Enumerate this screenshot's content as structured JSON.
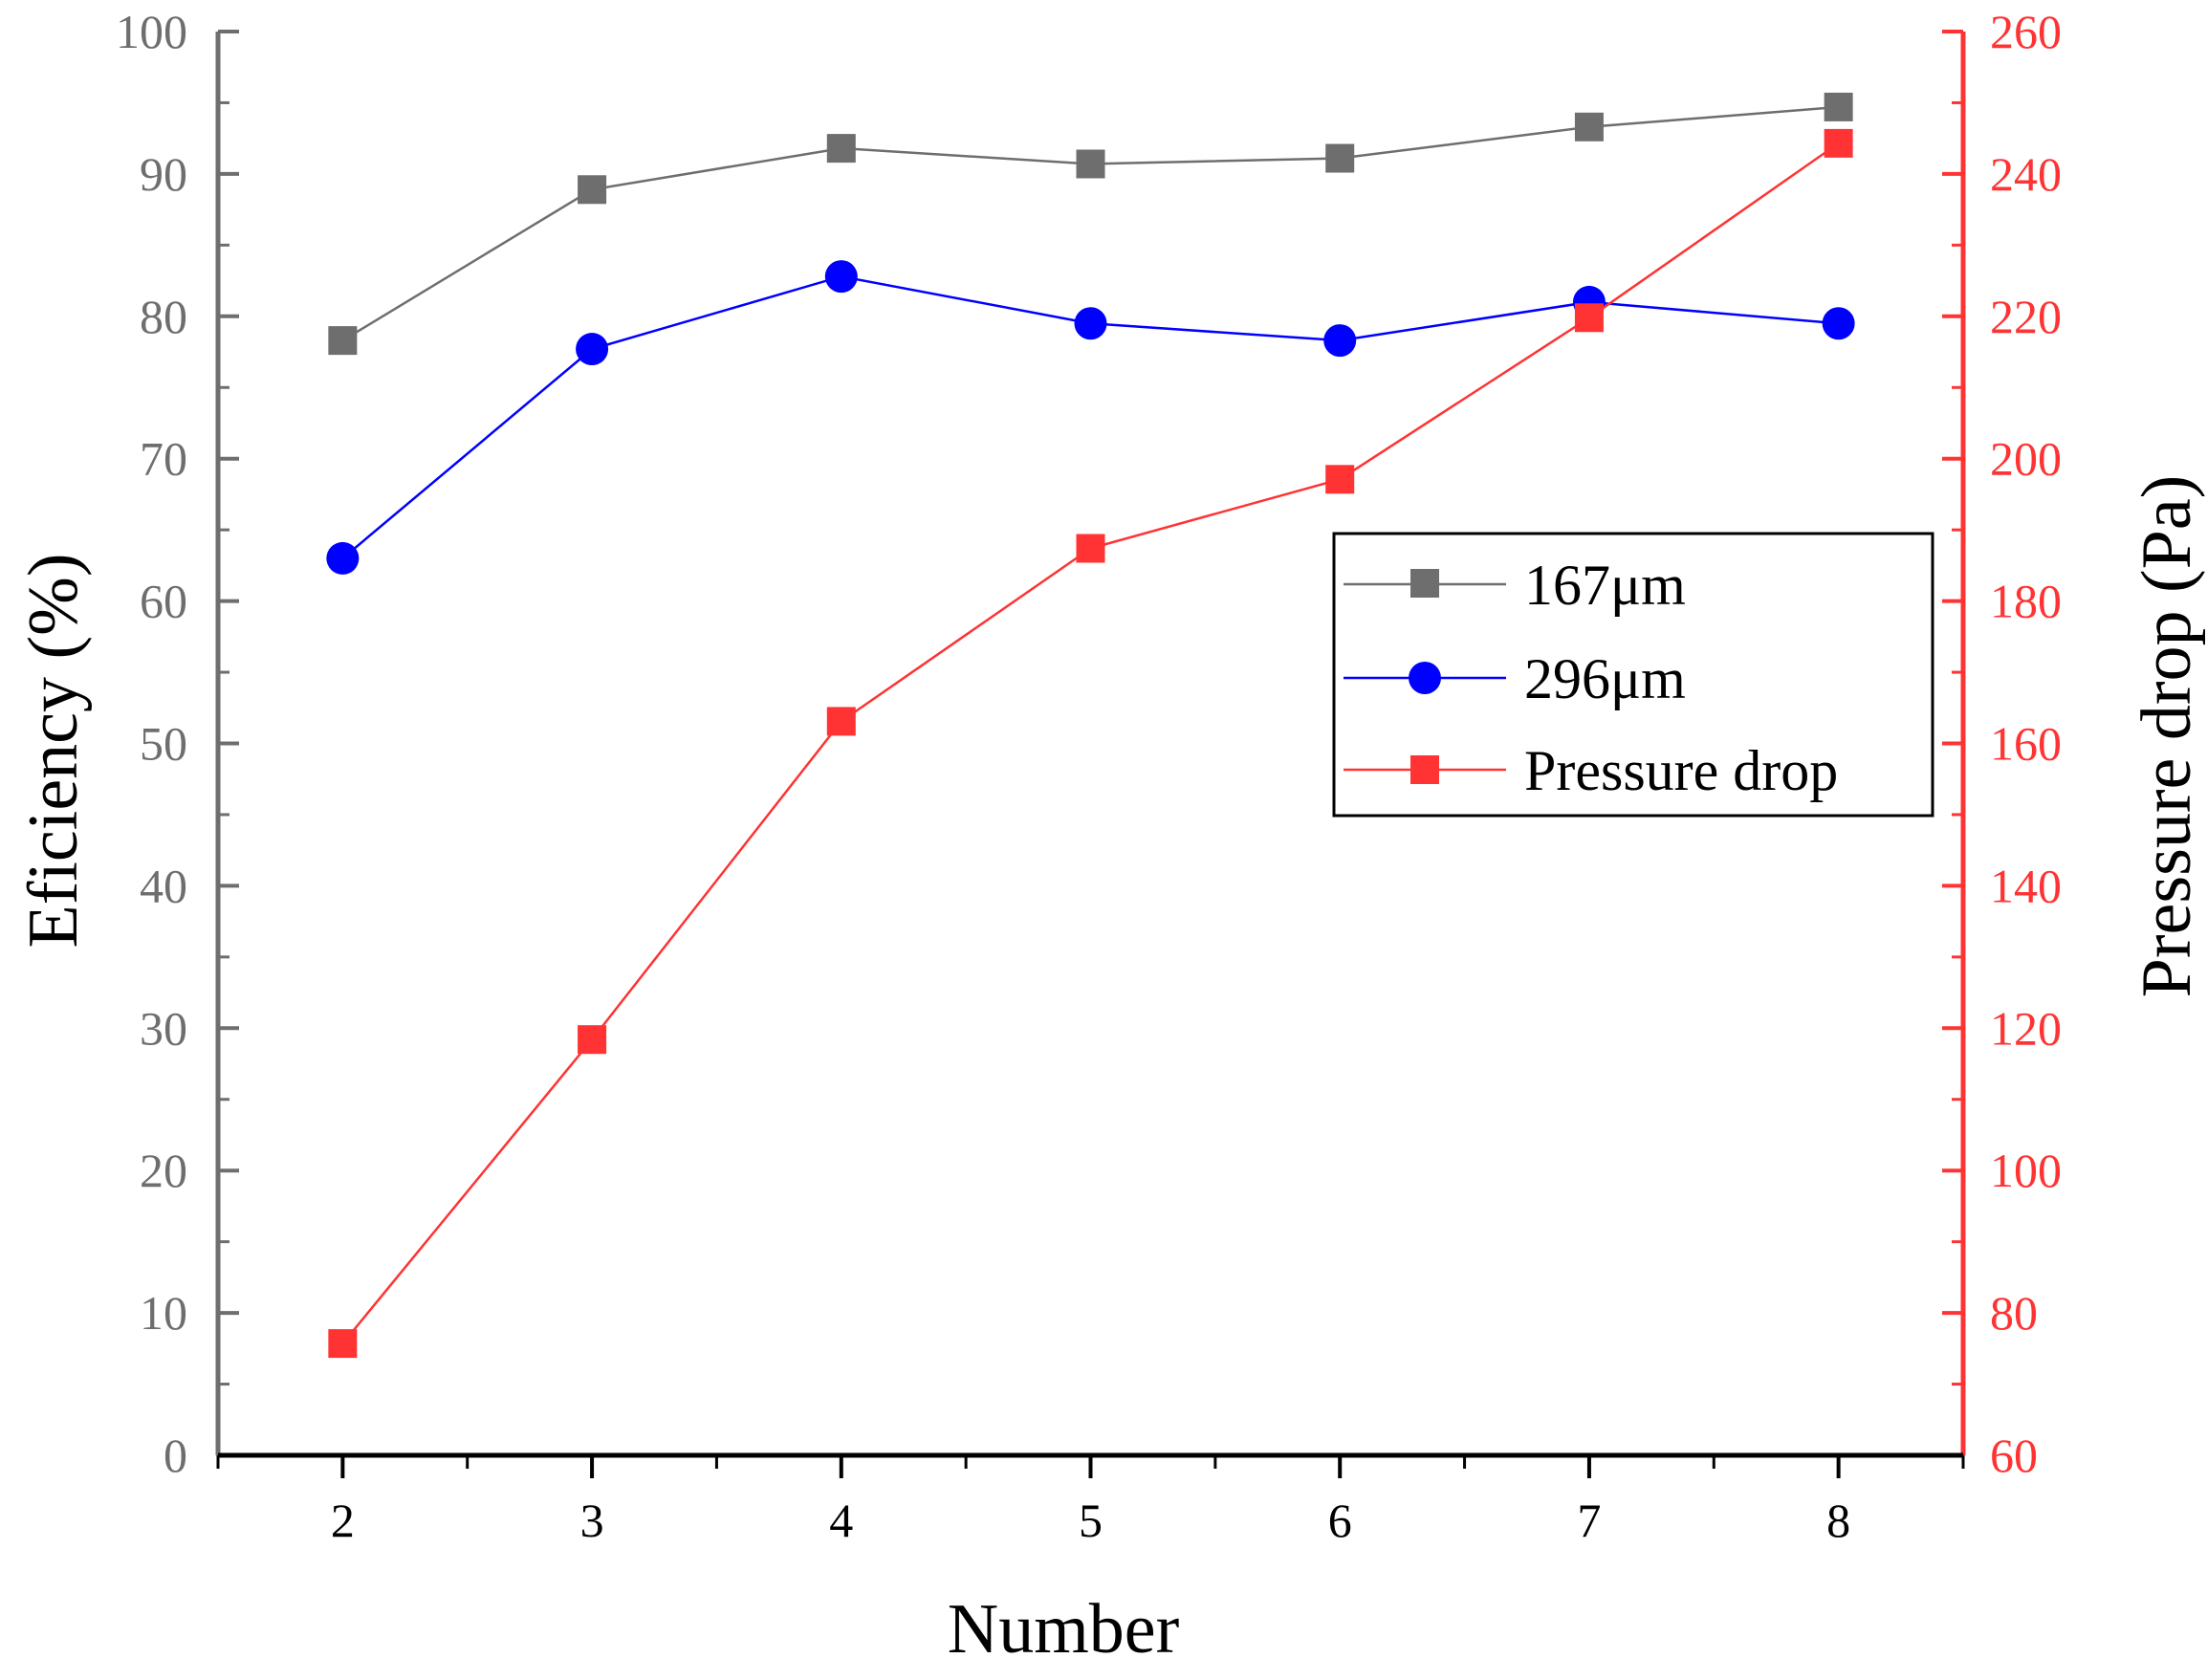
{
  "chart_data": {
    "type": "line",
    "title": "",
    "xlabel": "Number",
    "ylabel_left": "Eficiency (%)",
    "ylabel_right": "Pressure drop (Pa)",
    "x": [
      2,
      3,
      4,
      5,
      6,
      7,
      8
    ],
    "x_ticks": [
      "2",
      "3",
      "4",
      "5",
      "6",
      "7",
      "8"
    ],
    "xlim": [
      1.5,
      8.5
    ],
    "ylim_left": [
      0,
      100
    ],
    "ylim_right": [
      60,
      260
    ],
    "y_ticks_left": [
      "0",
      "10",
      "20",
      "30",
      "40",
      "50",
      "60",
      "70",
      "80",
      "90",
      "100"
    ],
    "y_ticks_right": [
      "60",
      "80",
      "100",
      "120",
      "140",
      "160",
      "180",
      "200",
      "220",
      "240",
      "260"
    ],
    "grid": false,
    "legend_position": "center-right",
    "series": [
      {
        "name": "167μm",
        "axis": "left",
        "marker": "square",
        "color": "#6e6e6e",
        "values": [
          78.3,
          88.9,
          91.8,
          90.7,
          91.1,
          93.3,
          94.7
        ]
      },
      {
        "name": "296μm",
        "axis": "left",
        "marker": "circle",
        "color": "#0000ff",
        "values": [
          63.0,
          77.7,
          82.8,
          79.5,
          78.3,
          81.0,
          79.5
        ]
      },
      {
        "name": "Pressure drop",
        "axis": "right",
        "marker": "square",
        "color": "#ff3333",
        "values": [
          75.7,
          118.4,
          163.1,
          187.4,
          197.1,
          219.8,
          244.3
        ]
      }
    ],
    "colors": {
      "left_axis": "#6e6e6e",
      "right_axis": "#ff3333",
      "bottom_axis": "#000000"
    }
  }
}
